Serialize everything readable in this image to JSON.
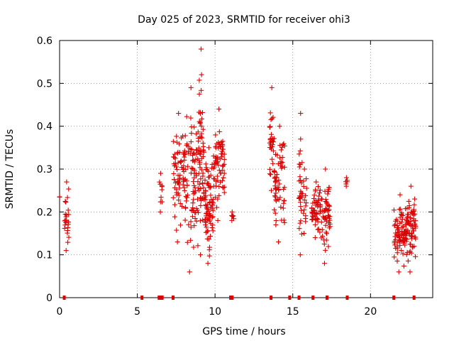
{
  "chart_data": {
    "type": "scatter",
    "title": "Day 025 of 2023, SRMTID for receiver ohi3",
    "xlabel": "GPS time / hours",
    "ylabel": "SRMTID / TECUs",
    "xlim": [
      0,
      24
    ],
    "ylim": [
      0,
      0.6
    ],
    "xticks": [
      "0",
      "5",
      "10",
      "15",
      "20"
    ],
    "yticks": [
      "0",
      "0.1",
      "0.2",
      "0.3",
      "0.4",
      "0.5",
      "0.6"
    ],
    "grid": true,
    "marker": "+",
    "color": "#dd0000",
    "series": [
      {
        "name": "ohi3",
        "clusters": [
          {
            "x": [
              0.0,
              0.0
            ],
            "y": [
              0.235,
              0.235
            ],
            "n": 2
          },
          {
            "x": [
              0.3,
              0.6
            ],
            "y": [
              0.11,
              0.27
            ],
            "n": 22
          },
          {
            "x": [
              6.4,
              6.6
            ],
            "y": [
              0.2,
              0.29
            ],
            "n": 8
          },
          {
            "x": [
              7.3,
              8.0
            ],
            "y": [
              0.13,
              0.43
            ],
            "n": 60
          },
          {
            "x": [
              8.0,
              8.9
            ],
            "y": [
              0.06,
              0.49
            ],
            "n": 90
          },
          {
            "x": [
              8.9,
              9.3
            ],
            "y": [
              0.1,
              0.58
            ],
            "n": 60
          },
          {
            "x": [
              9.3,
              9.9
            ],
            "y": [
              0.08,
              0.35
            ],
            "n": 80
          },
          {
            "x": [
              9.9,
              10.6
            ],
            "y": [
              0.18,
              0.44
            ],
            "n": 70
          },
          {
            "x": [
              11.0,
              11.2
            ],
            "y": [
              0.18,
              0.2
            ],
            "n": 5
          },
          {
            "x": [
              13.5,
              13.8
            ],
            "y": [
              0.25,
              0.49
            ],
            "n": 30
          },
          {
            "x": [
              13.8,
              14.5
            ],
            "y": [
              0.13,
              0.4
            ],
            "n": 60
          },
          {
            "x": [
              15.4,
              15.6
            ],
            "y": [
              0.1,
              0.43
            ],
            "n": 25
          },
          {
            "x": [
              15.6,
              15.9
            ],
            "y": [
              0.15,
              0.3
            ],
            "n": 15
          },
          {
            "x": [
              16.2,
              16.8
            ],
            "y": [
              0.14,
              0.27
            ],
            "n": 55
          },
          {
            "x": [
              16.8,
              17.4
            ],
            "y": [
              0.08,
              0.3
            ],
            "n": 55
          },
          {
            "x": [
              18.4,
              18.5
            ],
            "y": [
              0.26,
              0.28
            ],
            "n": 4
          },
          {
            "x": [
              21.5,
              22.3
            ],
            "y": [
              0.06,
              0.24
            ],
            "n": 80
          },
          {
            "x": [
              22.3,
              22.9
            ],
            "y": [
              0.06,
              0.26
            ],
            "n": 70
          }
        ]
      }
    ],
    "zero_points_x": [
      0.3,
      5.3,
      6.4,
      6.5,
      6.6,
      7.3,
      11.0,
      11.1,
      13.6,
      14.8,
      15.4,
      16.3,
      17.2,
      18.5,
      21.5,
      22.8
    ]
  }
}
